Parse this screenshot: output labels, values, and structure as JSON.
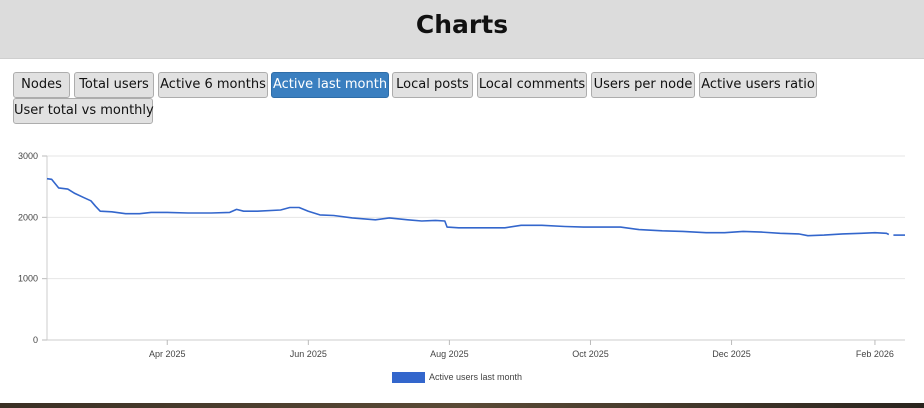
{
  "page": {
    "title": "Charts"
  },
  "tabs": [
    {
      "label": "Nodes",
      "active": false
    },
    {
      "label": "Total users",
      "active": false
    },
    {
      "label": "Active 6 months",
      "active": false
    },
    {
      "label": "Active last month",
      "active": true
    },
    {
      "label": "Local posts",
      "active": false
    },
    {
      "label": "Local comments",
      "active": false
    },
    {
      "label": "Users per node",
      "active": false
    },
    {
      "label": "Active users ratio",
      "active": false
    },
    {
      "label": "User total vs monthly",
      "active": false
    }
  ],
  "chart_data": {
    "type": "line",
    "title": "",
    "xlabel": "",
    "ylabel": "",
    "ylim": [
      0,
      3000
    ],
    "xlim": [
      "2025-02-08",
      "2026-02-14"
    ],
    "y_ticks": [
      0,
      1000,
      2000,
      3000
    ],
    "x_ticks": [
      {
        "value": "2025-04-01",
        "label": "Apr 2025"
      },
      {
        "value": "2025-06-01",
        "label": "Jun 2025"
      },
      {
        "value": "2025-08-01",
        "label": "Aug 2025"
      },
      {
        "value": "2025-10-01",
        "label": "Oct 2025"
      },
      {
        "value": "2025-12-01",
        "label": "Dec 2025"
      },
      {
        "value": "2026-02-01",
        "label": "Feb 2026"
      }
    ],
    "grid": true,
    "legend_position": "bottom",
    "series": [
      {
        "name": "Active users last month",
        "color": "#3366cc",
        "points": [
          [
            "2025-02-08",
            2630
          ],
          [
            "2025-02-10",
            2620
          ],
          [
            "2025-02-13",
            2480
          ],
          [
            "2025-02-17",
            2460
          ],
          [
            "2025-02-20",
            2390
          ],
          [
            "2025-02-24",
            2320
          ],
          [
            "2025-02-27",
            2270
          ],
          [
            "2025-03-01",
            2180
          ],
          [
            "2025-03-03",
            2100
          ],
          [
            "2025-03-08",
            2090
          ],
          [
            "2025-03-14",
            2060
          ],
          [
            "2025-03-20",
            2060
          ],
          [
            "2025-03-25",
            2080
          ],
          [
            "2025-04-01",
            2080
          ],
          [
            "2025-04-10",
            2070
          ],
          [
            "2025-04-20",
            2070
          ],
          [
            "2025-04-28",
            2080
          ],
          [
            "2025-05-01",
            2130
          ],
          [
            "2025-05-04",
            2100
          ],
          [
            "2025-05-10",
            2100
          ],
          [
            "2025-05-20",
            2120
          ],
          [
            "2025-05-24",
            2160
          ],
          [
            "2025-05-28",
            2160
          ],
          [
            "2025-06-01",
            2100
          ],
          [
            "2025-06-06",
            2040
          ],
          [
            "2025-06-12",
            2030
          ],
          [
            "2025-06-20",
            1990
          ],
          [
            "2025-06-30",
            1960
          ],
          [
            "2025-07-06",
            1990
          ],
          [
            "2025-07-14",
            1960
          ],
          [
            "2025-07-20",
            1940
          ],
          [
            "2025-07-26",
            1950
          ],
          [
            "2025-07-30",
            1940
          ],
          [
            "2025-07-31",
            1840
          ],
          [
            "2025-08-05",
            1830
          ],
          [
            "2025-08-15",
            1830
          ],
          [
            "2025-08-25",
            1830
          ],
          [
            "2025-09-01",
            1870
          ],
          [
            "2025-09-10",
            1870
          ],
          [
            "2025-09-20",
            1850
          ],
          [
            "2025-09-28",
            1840
          ],
          [
            "2025-10-06",
            1840
          ],
          [
            "2025-10-14",
            1840
          ],
          [
            "2025-10-22",
            1800
          ],
          [
            "2025-11-01",
            1780
          ],
          [
            "2025-11-10",
            1770
          ],
          [
            "2025-11-20",
            1750
          ],
          [
            "2025-11-28",
            1750
          ],
          [
            "2025-12-06",
            1770
          ],
          [
            "2025-12-14",
            1760
          ],
          [
            "2025-12-22",
            1740
          ],
          [
            "2025-12-30",
            1730
          ],
          [
            "2026-01-03",
            1700
          ],
          [
            "2026-01-10",
            1710
          ],
          [
            "2026-01-18",
            1730
          ],
          [
            "2026-01-26",
            1740
          ],
          [
            "2026-02-01",
            1750
          ],
          [
            "2026-02-06",
            1740
          ],
          [
            "2026-02-07",
            1720
          ]
        ]
      },
      {
        "color": "#3366cc",
        "points": [
          [
            "2026-02-09",
            1710
          ],
          [
            "2026-02-14",
            1710
          ]
        ]
      }
    ]
  }
}
